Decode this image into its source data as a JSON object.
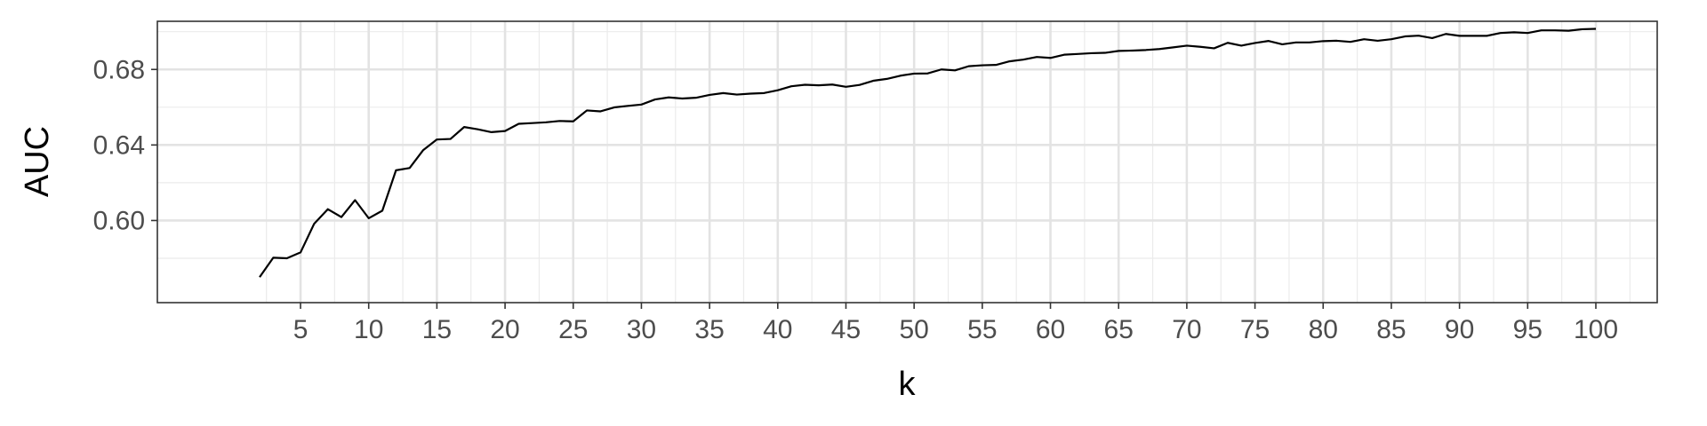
{
  "chart_data": {
    "type": "line",
    "xlabel": "k",
    "ylabel": "AUC",
    "xlim": [
      -5.5,
      104.5
    ],
    "ylim": [
      0.5565,
      0.7055
    ],
    "x_ticks": [
      5,
      10,
      15,
      20,
      25,
      30,
      35,
      40,
      45,
      50,
      55,
      60,
      65,
      70,
      75,
      80,
      85,
      90,
      95,
      100
    ],
    "y_ticks": [
      0.6,
      0.64,
      0.68
    ],
    "y_tick_labels": [
      "0.60",
      "0.64",
      "0.68"
    ],
    "grid": true,
    "line_color": "#000000",
    "series": [
      {
        "x": [
          2,
          3,
          4,
          5,
          6,
          7,
          8,
          9,
          10,
          11,
          12,
          13,
          14,
          15,
          16,
          17,
          18,
          19,
          20,
          21,
          22,
          23,
          24,
          25,
          26,
          27,
          28,
          29,
          30,
          31,
          32,
          33,
          34,
          35,
          36,
          37,
          38,
          39,
          40,
          41,
          42,
          43,
          44,
          45,
          46,
          47,
          48,
          49,
          50,
          51,
          52,
          53,
          54,
          55,
          56,
          57,
          58,
          59,
          60,
          61,
          62,
          63,
          64,
          65,
          66,
          67,
          68,
          69,
          70,
          71,
          72,
          73,
          74,
          75,
          76,
          77,
          78,
          79,
          80,
          81,
          82,
          83,
          84,
          85,
          86,
          87,
          88,
          89,
          90,
          91,
          92,
          93,
          94,
          95,
          96,
          97,
          98,
          99,
          100
        ],
        "values": [
          0.57,
          0.5803,
          0.58,
          0.5831,
          0.5983,
          0.606,
          0.6018,
          0.6108,
          0.6012,
          0.6052,
          0.6266,
          0.6278,
          0.6373,
          0.6429,
          0.6432,
          0.6495,
          0.6483,
          0.6468,
          0.6474,
          0.6512,
          0.6516,
          0.652,
          0.6527,
          0.6525,
          0.6583,
          0.6578,
          0.6599,
          0.6607,
          0.6614,
          0.6641,
          0.6652,
          0.6646,
          0.665,
          0.6665,
          0.6675,
          0.6667,
          0.6672,
          0.6675,
          0.669,
          0.6711,
          0.6719,
          0.6716,
          0.672,
          0.6708,
          0.6718,
          0.674,
          0.675,
          0.6767,
          0.6778,
          0.6779,
          0.68,
          0.6795,
          0.6817,
          0.6822,
          0.6824,
          0.6843,
          0.6852,
          0.6866,
          0.6861,
          0.6878,
          0.6882,
          0.6886,
          0.6888,
          0.6898,
          0.69,
          0.6903,
          0.6908,
          0.6917,
          0.6926,
          0.692,
          0.6912,
          0.6941,
          0.6926,
          0.694,
          0.6951,
          0.6933,
          0.6943,
          0.6943,
          0.695,
          0.6952,
          0.6946,
          0.696,
          0.6952,
          0.696,
          0.6975,
          0.6979,
          0.6966,
          0.6988,
          0.6978,
          0.6978,
          0.6978,
          0.6993,
          0.6997,
          0.6993,
          0.7007,
          0.7007,
          0.7005,
          0.7013,
          0.7015
        ]
      }
    ]
  }
}
